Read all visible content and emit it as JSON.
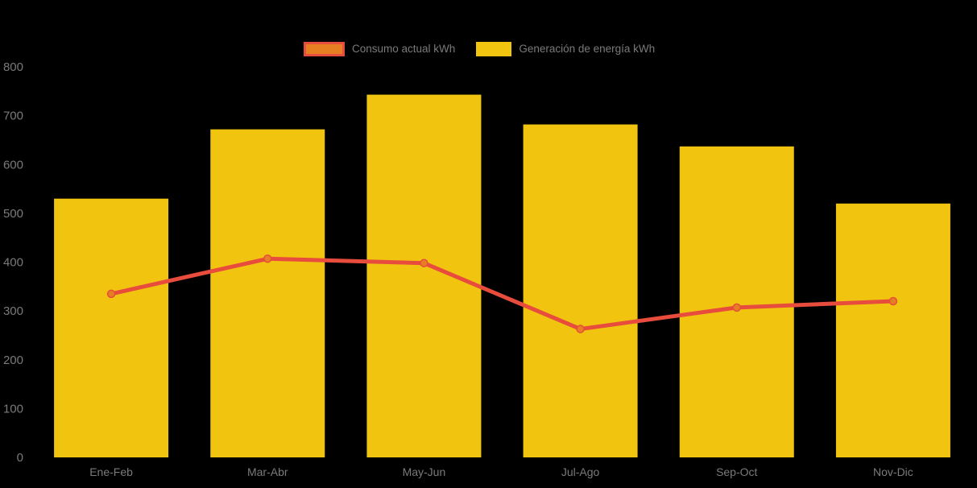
{
  "chart_data": {
    "type": "combo",
    "title": "",
    "categories": [
      "Ene-Feb",
      "Mar-Abr",
      "May-Jun",
      "Jul-Ago",
      "Sep-Oct",
      "Nov-Dic"
    ],
    "series": [
      {
        "name": "Consumo actual kWh",
        "type": "line",
        "color": "#E74C3C",
        "marker_color": "#E67E22",
        "values": [
          335,
          407,
          398,
          263,
          307,
          320
        ]
      },
      {
        "name": "Generación de energía kWh",
        "type": "bar",
        "color": "#F1C40F",
        "values": [
          530,
          672,
          743,
          682,
          637,
          520
        ]
      }
    ],
    "xlabel": "",
    "ylabel": "",
    "ylim": [
      0,
      800
    ],
    "ytick_step": 100,
    "yticks": [
      "0",
      "100",
      "200",
      "300",
      "400",
      "500",
      "600",
      "700",
      "800"
    ],
    "grid": false,
    "legend_position": "top-center",
    "background_color": "#000000",
    "text_color": "#7A7A7A"
  }
}
